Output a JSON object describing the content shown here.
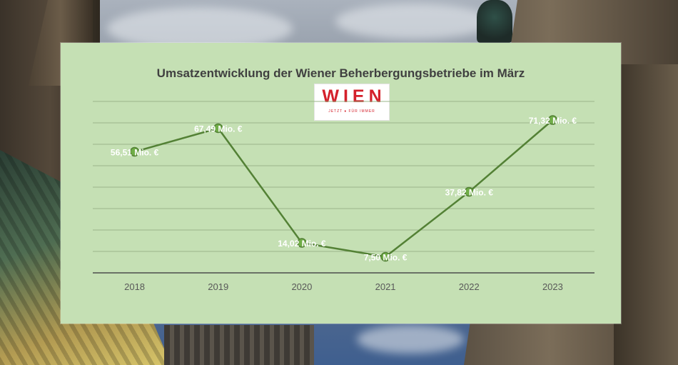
{
  "chart_data": {
    "type": "line",
    "title": "Umsatzentwicklung der Wiener Beherbergungsbetriebe im März",
    "categories": [
      "2018",
      "2019",
      "2020",
      "2021",
      "2022",
      "2023"
    ],
    "values": [
      56.51,
      67.49,
      14.02,
      7.5,
      37.82,
      71.32
    ],
    "data_labels": [
      "56,51 Mio. €",
      "67,49 Mio. €",
      "14,02 Mio. €",
      "7,50 Mio. €",
      "37,82 Mio. €",
      "71,32 Mio. €"
    ],
    "ylim": [
      0,
      80
    ],
    "grid": true,
    "line_color": "#538135",
    "marker_fill": "#70ad47"
  },
  "logo": {
    "word": "WIEN",
    "tagline": "JETZT ♦ FÜR IMMER",
    "color": "#d4202b"
  },
  "colors": {
    "panel": "#c5e0b4",
    "grid": "#9ab58a",
    "axis_text": "#595959",
    "label_text": "#ffffff"
  }
}
